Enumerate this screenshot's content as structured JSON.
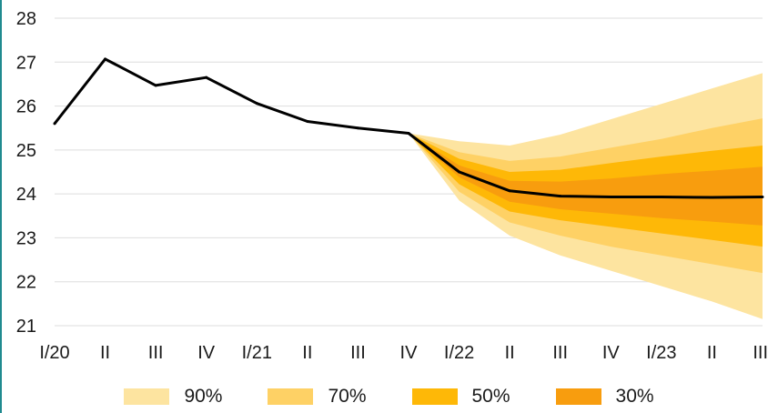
{
  "chart_data": {
    "type": "line",
    "title": "",
    "xlabel": "",
    "ylabel": "",
    "ylim": [
      21,
      28
    ],
    "yticks": [
      21,
      22,
      23,
      24,
      25,
      26,
      27,
      28
    ],
    "grid": "horizontal",
    "categories": [
      "I/20",
      "II",
      "III",
      "IV",
      "I/21",
      "II",
      "III",
      "IV",
      "I/22",
      "II",
      "III",
      "IV",
      "I/23",
      "II",
      "III"
    ],
    "series": [
      {
        "values": [
          25.6,
          27.07,
          26.47,
          26.65,
          26.06,
          25.65,
          25.5,
          25.38,
          24.5,
          24.07,
          23.95,
          23.93,
          23.93,
          23.92,
          23.93
        ]
      }
    ],
    "fan_start_index": 7,
    "fan_bands": [
      {
        "name": "90%",
        "color": "#fde4a0",
        "lower": [
          25.38,
          23.85,
          23.05,
          22.6,
          22.25,
          21.9,
          21.55,
          21.15
        ],
        "upper": [
          25.38,
          25.2,
          25.1,
          25.35,
          25.7,
          26.05,
          26.4,
          26.75
        ]
      },
      {
        "name": "70%",
        "color": "#fed165",
        "lower": [
          25.38,
          24.05,
          23.35,
          23.05,
          22.8,
          22.6,
          22.4,
          22.2
        ],
        "upper": [
          25.38,
          24.95,
          24.75,
          24.85,
          25.05,
          25.25,
          25.5,
          25.72
        ]
      },
      {
        "name": "50%",
        "color": "#feb807",
        "lower": [
          25.38,
          24.22,
          23.6,
          23.4,
          23.25,
          23.1,
          22.95,
          22.8
        ],
        "upper": [
          25.38,
          24.8,
          24.5,
          24.55,
          24.7,
          24.85,
          24.98,
          25.1
        ]
      },
      {
        "name": "30%",
        "color": "#f89d0e",
        "lower": [
          25.38,
          24.38,
          23.82,
          23.65,
          23.55,
          23.45,
          23.37,
          23.28
        ],
        "upper": [
          25.38,
          24.65,
          24.3,
          24.28,
          24.35,
          24.45,
          24.53,
          24.62
        ]
      }
    ],
    "legend": {
      "placement": "bottom",
      "entries": [
        "90%",
        "70%",
        "50%",
        "30%"
      ]
    }
  }
}
